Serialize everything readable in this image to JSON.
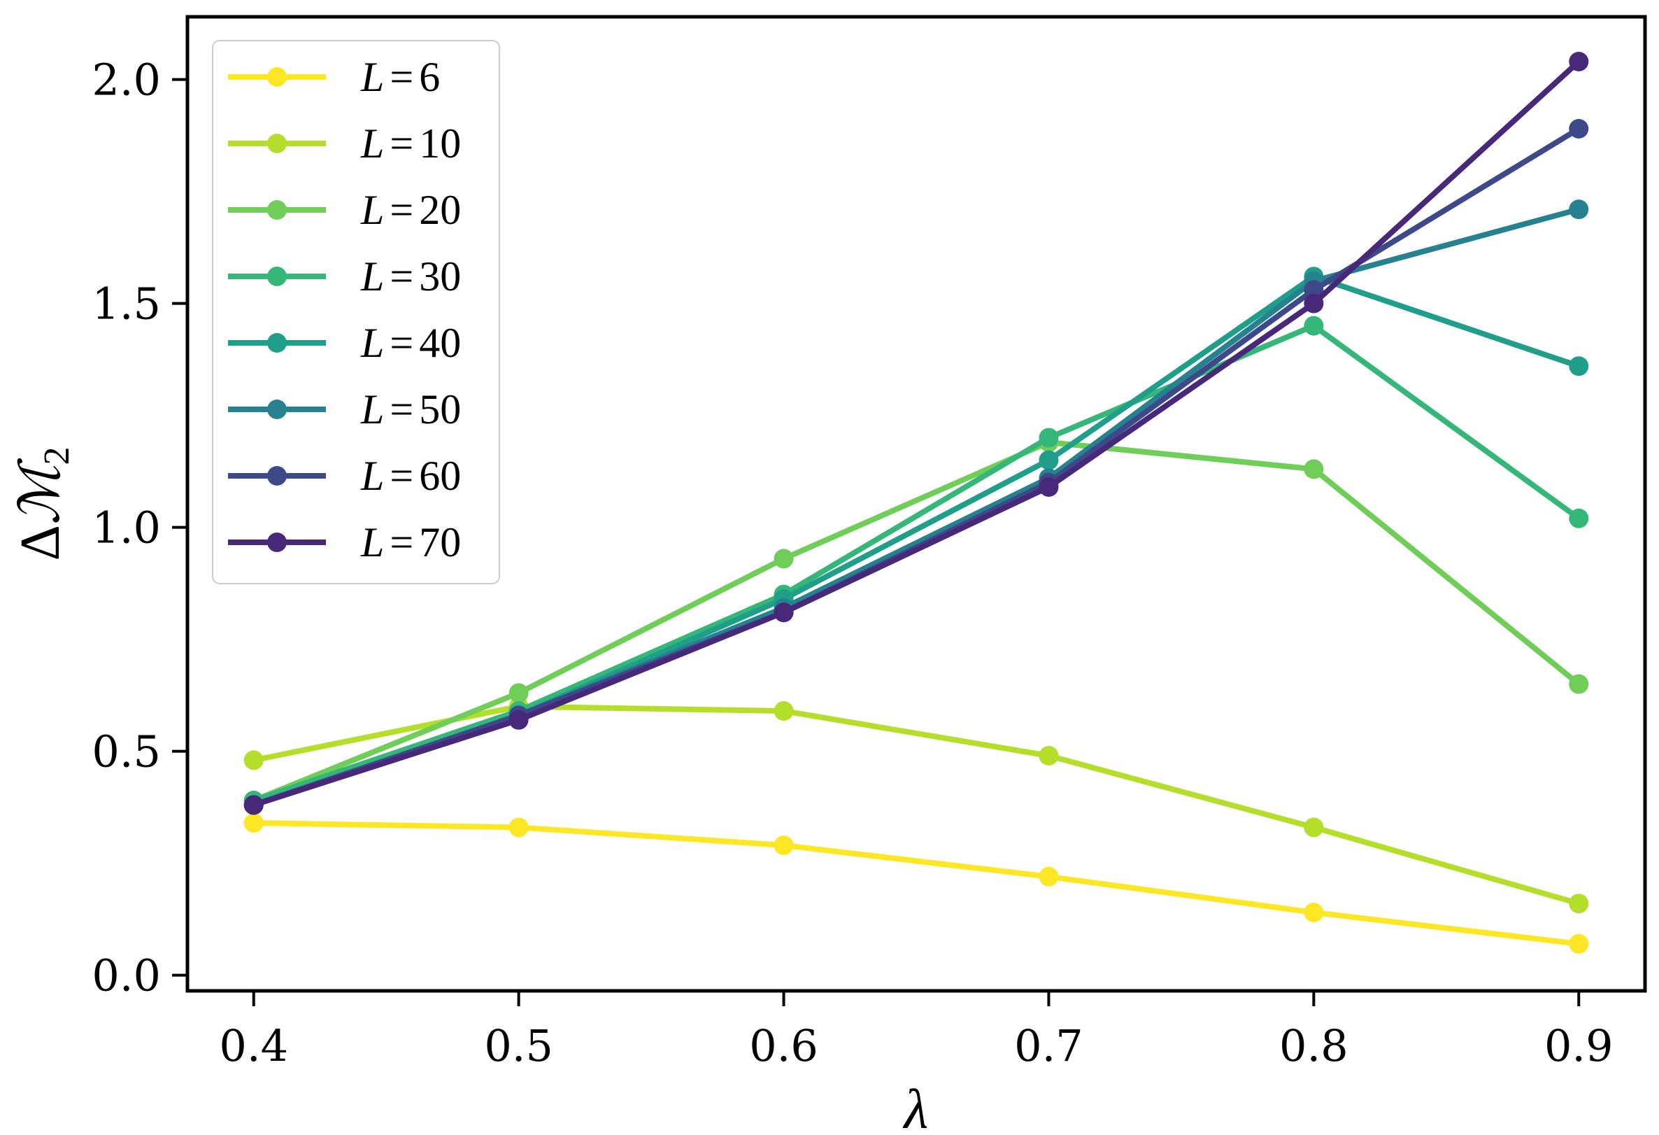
{
  "chart_data": {
    "type": "line",
    "title": "",
    "xlabel": "λ",
    "ylabel_main": "Δ",
    "ylabel_symbol": "ℳ",
    "ylabel_subscript": "2",
    "x": [
      0.4,
      0.5,
      0.6,
      0.7,
      0.8,
      0.9
    ],
    "xlim": [
      0.375,
      0.925
    ],
    "ylim": [
      -0.035,
      2.14
    ],
    "xticks": [
      "0.4",
      "0.5",
      "0.6",
      "0.7",
      "0.8",
      "0.9"
    ],
    "yticks": [
      "0.0",
      "0.5",
      "1.0",
      "1.5",
      "2.0"
    ],
    "xtick_values": [
      0.4,
      0.5,
      0.6,
      0.7,
      0.8,
      0.9
    ],
    "ytick_values": [
      0.0,
      0.5,
      1.0,
      1.5,
      2.0
    ],
    "grid": false,
    "legend_position": "top-left",
    "series": [
      {
        "name": "L = 6",
        "var": "L",
        "eq": "=",
        "num": "6",
        "color": "#fde725",
        "values": [
          0.34,
          0.33,
          0.29,
          0.22,
          0.14,
          0.07
        ]
      },
      {
        "name": "L = 10",
        "var": "L",
        "eq": "=",
        "num": "10",
        "color": "#b5de2b",
        "values": [
          0.48,
          0.6,
          0.59,
          0.49,
          0.33,
          0.16
        ]
      },
      {
        "name": "L = 20",
        "var": "L",
        "eq": "=",
        "num": "20",
        "color": "#6ece58",
        "values": [
          0.39,
          0.63,
          0.93,
          1.19,
          1.13,
          0.65
        ]
      },
      {
        "name": "L = 30",
        "var": "L",
        "eq": "=",
        "num": "30",
        "color": "#35b779",
        "values": [
          0.39,
          0.59,
          0.85,
          1.2,
          1.45,
          1.02
        ]
      },
      {
        "name": "L = 40",
        "var": "L",
        "eq": "=",
        "num": "40",
        "color": "#1f9e89",
        "values": [
          0.38,
          0.58,
          0.84,
          1.15,
          1.56,
          1.36
        ]
      },
      {
        "name": "L = 50",
        "var": "L",
        "eq": "=",
        "num": "50",
        "color": "#26828e",
        "values": [
          0.38,
          0.58,
          0.82,
          1.11,
          1.55,
          1.71
        ]
      },
      {
        "name": "L = 60",
        "var": "L",
        "eq": "=",
        "num": "60",
        "color": "#3e4989",
        "values": [
          0.38,
          0.58,
          0.81,
          1.1,
          1.53,
          1.89
        ]
      },
      {
        "name": "L = 70",
        "var": "L",
        "eq": "=",
        "num": "70",
        "color": "#482878",
        "values": [
          0.38,
          0.57,
          0.81,
          1.09,
          1.5,
          2.04
        ]
      }
    ]
  }
}
